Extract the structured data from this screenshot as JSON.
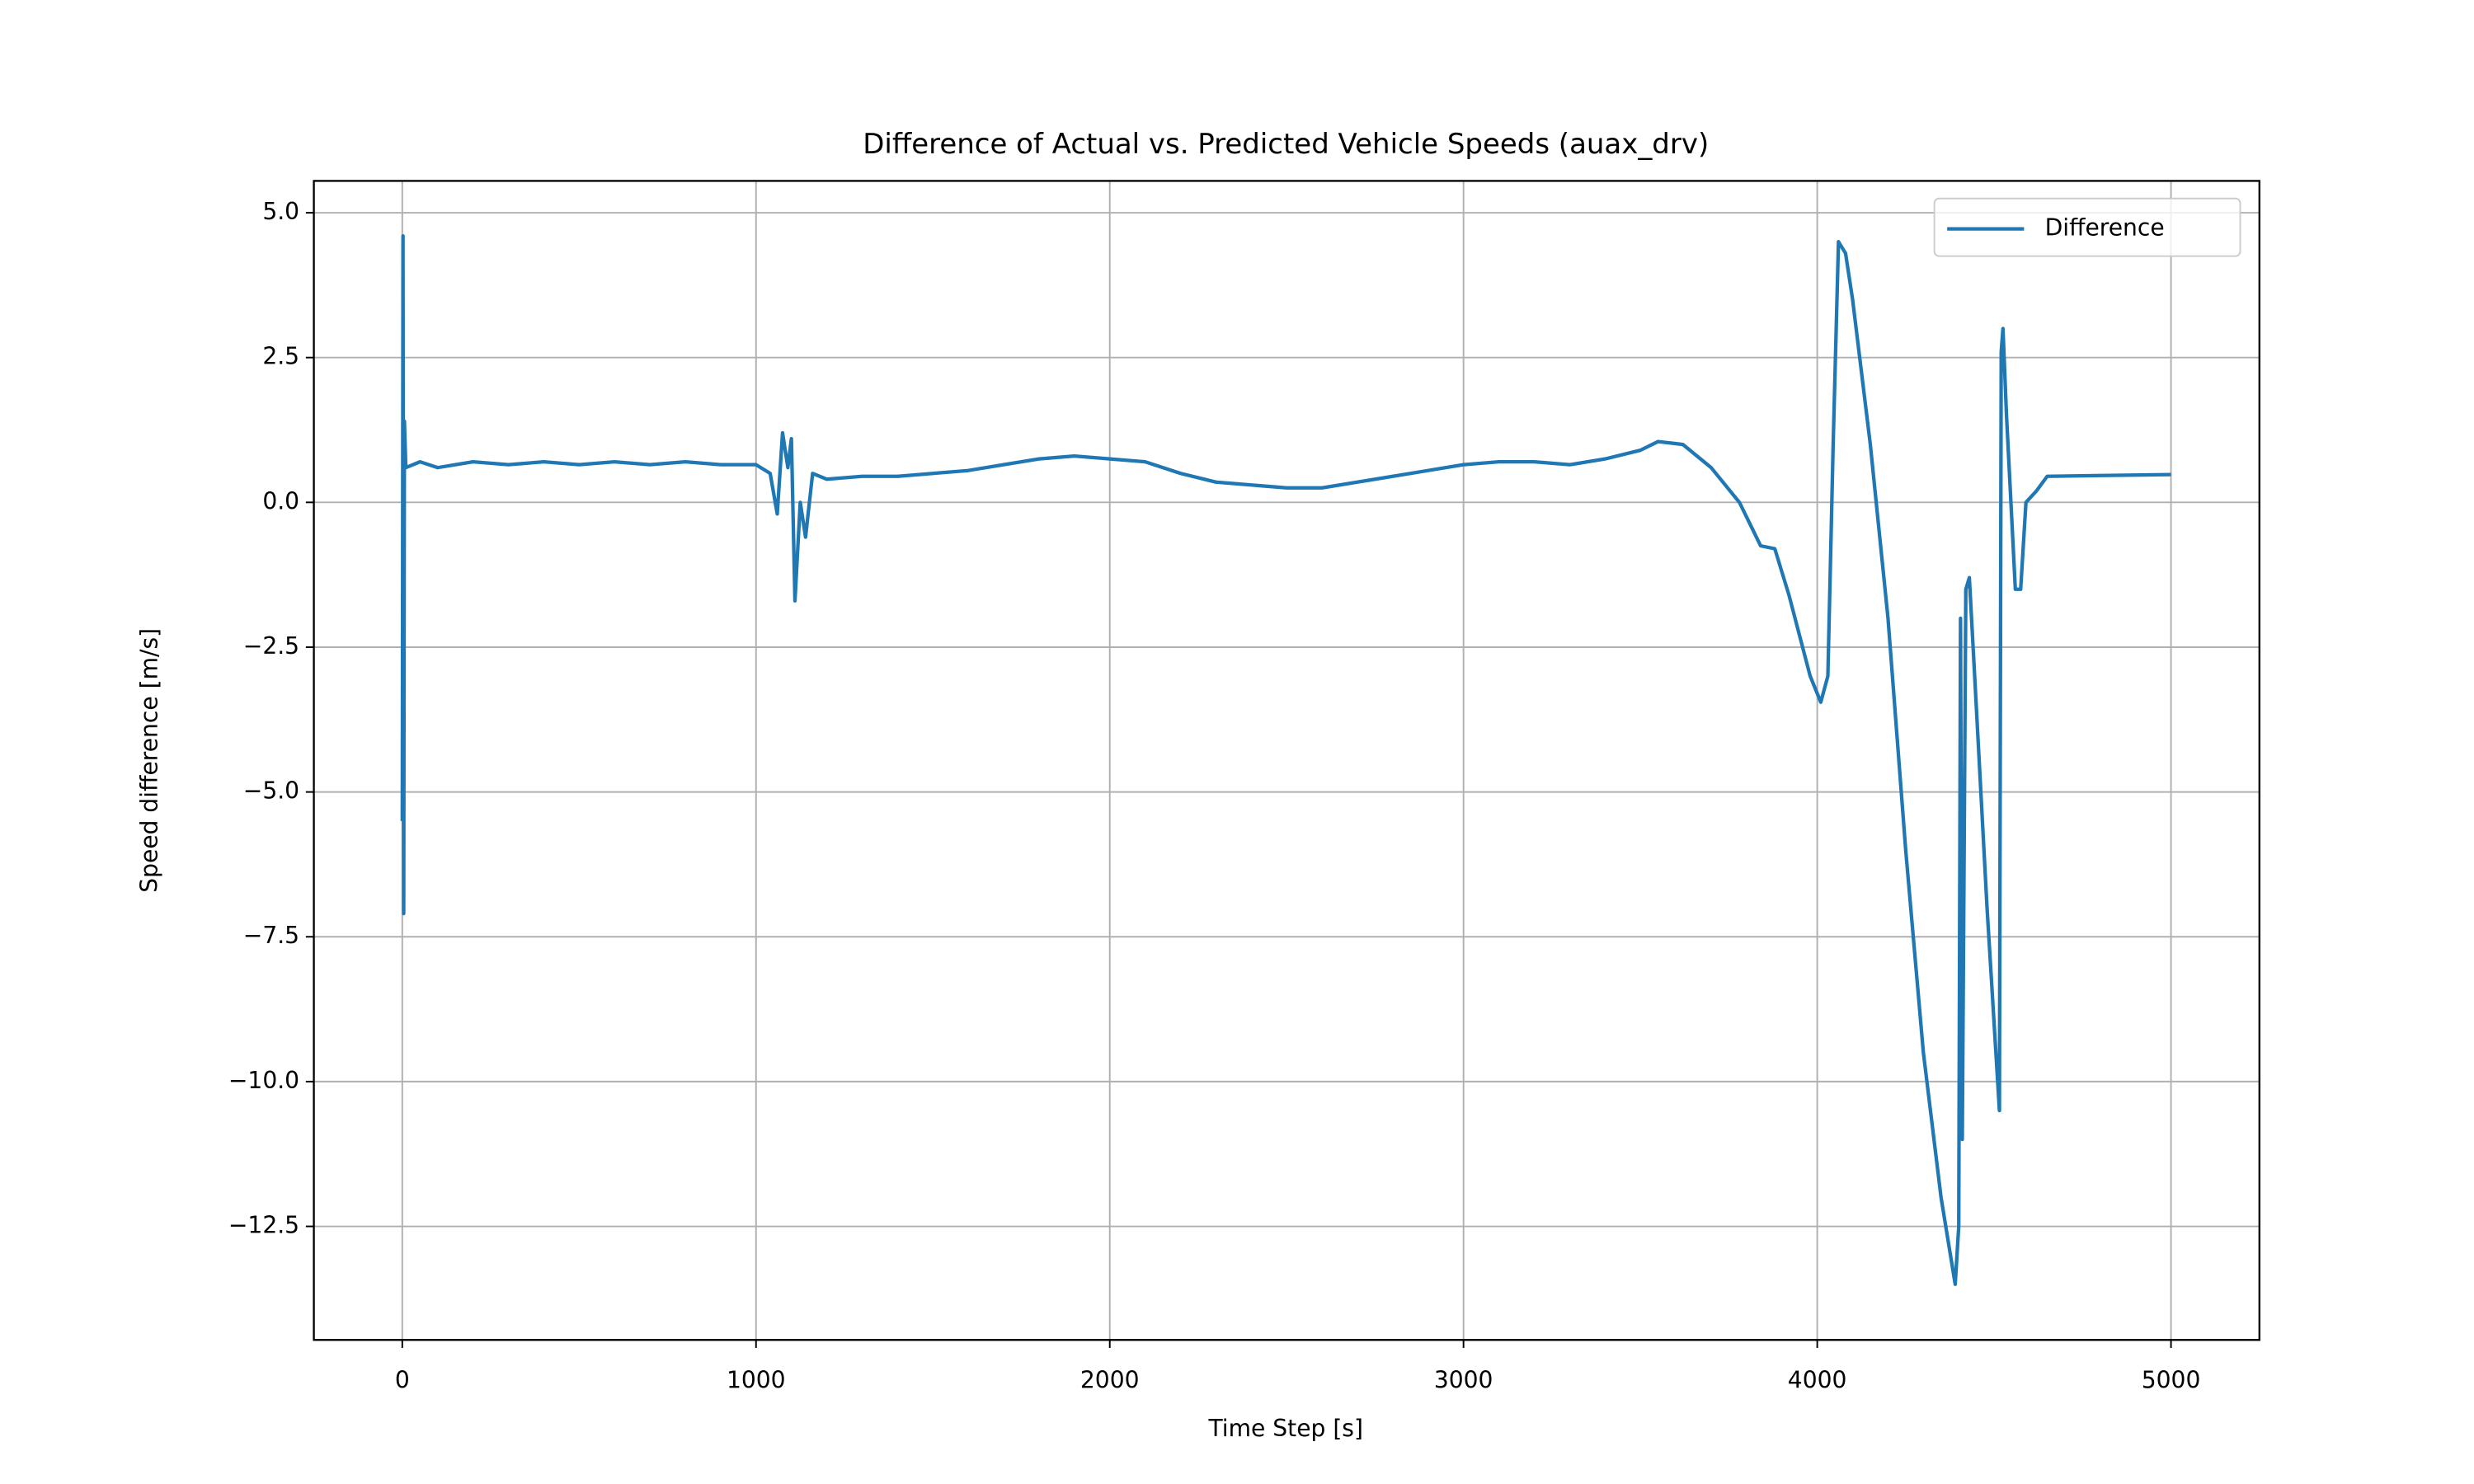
{
  "chart_data": {
    "type": "line",
    "title": "Difference of Actual vs. Predicted Vehicle Speeds (auax_drv)",
    "x_label": "Time Step [s]",
    "y_label": "Speed difference [m/s]",
    "x": [
      0,
      2,
      4,
      6,
      10,
      50,
      100,
      200,
      300,
      400,
      500,
      600,
      700,
      800,
      900,
      1000,
      1040,
      1060,
      1075,
      1090,
      1100,
      1110,
      1125,
      1140,
      1160,
      1200,
      1300,
      1400,
      1500,
      1600,
      1700,
      1800,
      1900,
      2000,
      2100,
      2200,
      2300,
      2400,
      2500,
      2600,
      2700,
      2800,
      2900,
      3000,
      3100,
      3200,
      3300,
      3400,
      3500,
      3550,
      3620,
      3700,
      3780,
      3840,
      3880,
      3920,
      3980,
      4010,
      4030,
      4045,
      4060,
      4080,
      4100,
      4150,
      4200,
      4250,
      4300,
      4350,
      4390,
      4400,
      4405,
      4410,
      4420,
      4430,
      4445,
      4480,
      4505,
      4515,
      4520,
      4525,
      4535,
      4560,
      4575,
      4590,
      4620,
      4650,
      5000
    ],
    "series": [
      {
        "name": "Difference",
        "color": "#1f77b4",
        "values": [
          -5.5,
          4.6,
          -7.1,
          1.4,
          0.6,
          0.7,
          0.6,
          0.7,
          0.65,
          0.7,
          0.65,
          0.7,
          0.65,
          0.7,
          0.65,
          0.65,
          0.5,
          -0.2,
          1.2,
          0.6,
          1.1,
          -1.7,
          0.0,
          -0.6,
          0.5,
          0.4,
          0.45,
          0.45,
          0.5,
          0.55,
          0.65,
          0.75,
          0.8,
          0.75,
          0.7,
          0.5,
          0.35,
          0.3,
          0.25,
          0.25,
          0.35,
          0.45,
          0.55,
          0.65,
          0.7,
          0.7,
          0.65,
          0.75,
          0.9,
          1.05,
          1.0,
          0.6,
          0.0,
          -0.75,
          -0.8,
          -1.6,
          -3.0,
          -3.45,
          -3.0,
          1.0,
          4.5,
          4.3,
          3.5,
          1.0,
          -2.0,
          -6.0,
          -9.5,
          -12.0,
          -13.5,
          -12.5,
          -2.0,
          -11.0,
          -1.5,
          -1.3,
          -3.0,
          -7.0,
          -9.5,
          -10.5,
          2.6,
          3.0,
          1.5,
          -1.5,
          -1.5,
          0.0,
          0.2,
          0.45,
          0.48
        ]
      }
    ],
    "xlim": [
      -250,
      5250
    ],
    "xticks": [
      0,
      1000,
      2000,
      3000,
      4000,
      5000
    ],
    "ylim": [
      -14.46,
      5.55
    ],
    "yticks": [
      {
        "value": 5,
        "label": "5.0"
      },
      {
        "value": 2.5,
        "label": "2.5"
      },
      {
        "value": 0,
        "label": "0.0"
      },
      {
        "value": -2.5,
        "label": "−2.5"
      },
      {
        "value": -5,
        "label": "−5.0"
      },
      {
        "value": -7.5,
        "label": "−7.5"
      },
      {
        "value": -10,
        "label": "−10.0"
      },
      {
        "value": -12.5,
        "label": "−12.5"
      }
    ],
    "grid": true,
    "legend": "upper right"
  }
}
